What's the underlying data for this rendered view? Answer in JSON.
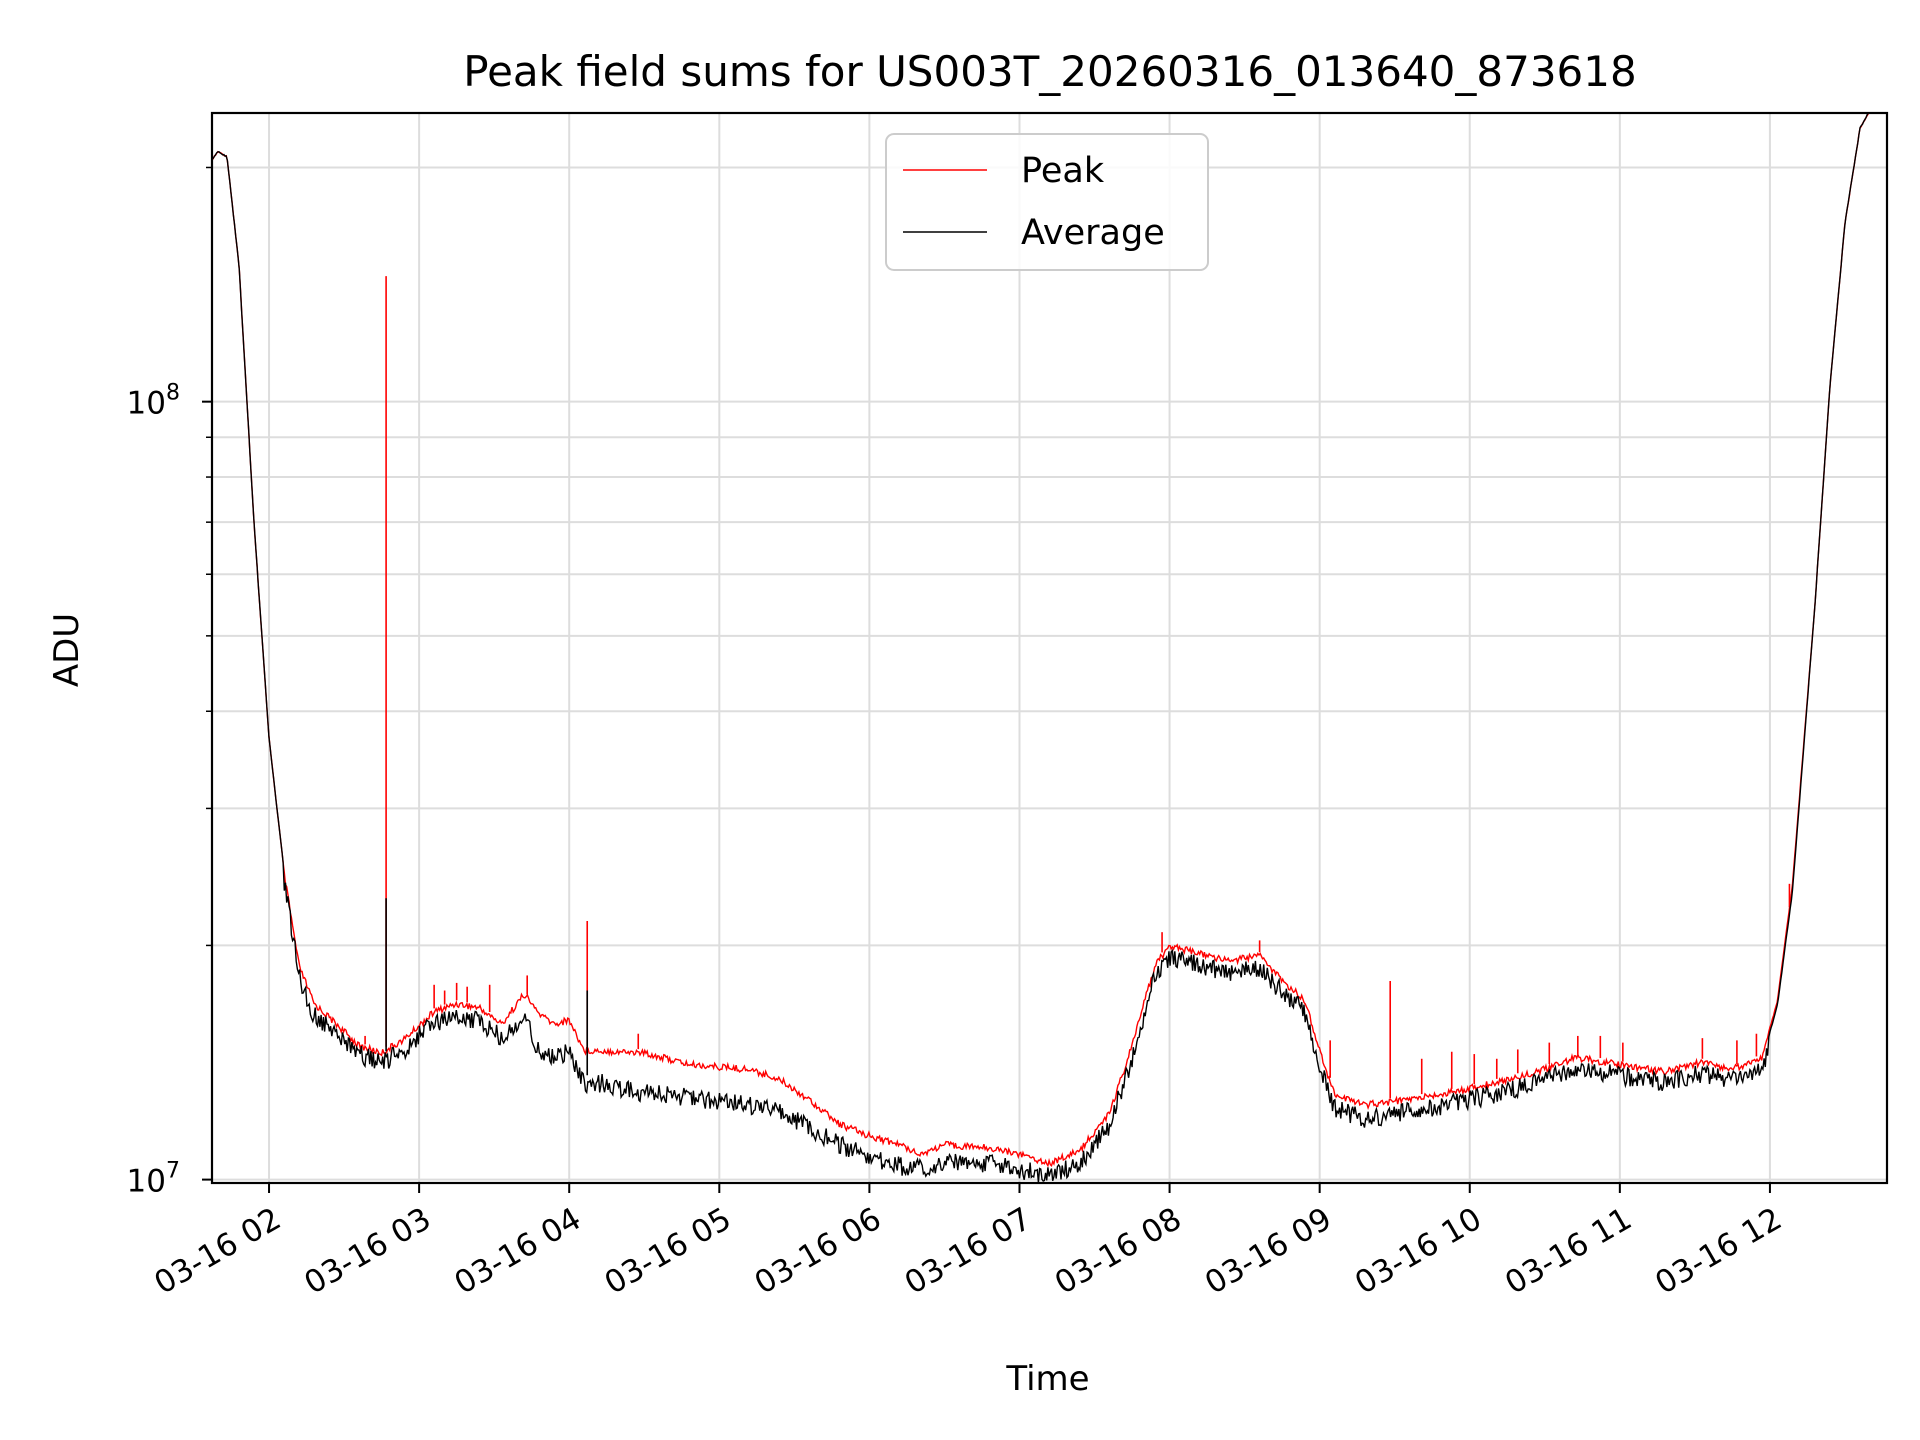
{
  "chart_data": {
    "type": "line",
    "title": "Peak field sums for US003T_20260316_013640_873618",
    "xlabel": "Time",
    "ylabel": "ADU",
    "yscale": "log",
    "ylim": [
      9900000,
      235000000
    ],
    "xlim": [
      1.62,
      12.78
    ],
    "x_tick_values": [
      2,
      3,
      4,
      5,
      6,
      7,
      8,
      9,
      10,
      11,
      12
    ],
    "x_tick_labels": [
      "03-16 02",
      "03-16 03",
      "03-16 04",
      "03-16 05",
      "03-16 06",
      "03-16 07",
      "03-16 08",
      "03-16 09",
      "03-16 10",
      "03-16 11",
      "03-16 12"
    ],
    "y_tick_labels": [
      {
        "value": 10000000,
        "base": "10",
        "exp": "7"
      },
      {
        "value": 100000000,
        "base": "10",
        "exp": "8"
      }
    ],
    "grid": true,
    "legend_position": "top-center",
    "series": [
      {
        "name": "Peak",
        "color": "#ff0000",
        "baseline": [
          [
            1.62,
            205000000
          ],
          [
            1.66,
            210000000
          ],
          [
            1.72,
            207000000
          ],
          [
            1.8,
            150000000
          ],
          [
            1.9,
            70000000
          ],
          [
            2.0,
            37000000
          ],
          [
            2.1,
            25000000
          ],
          [
            2.2,
            19000000
          ],
          [
            2.3,
            17000000
          ],
          [
            2.45,
            16000000
          ],
          [
            2.6,
            15000000
          ],
          [
            2.75,
            14700000
          ],
          [
            2.9,
            15300000
          ],
          [
            3.1,
            16600000
          ],
          [
            3.25,
            17000000
          ],
          [
            3.4,
            16800000
          ],
          [
            3.55,
            16000000
          ],
          [
            3.7,
            17500000
          ],
          [
            3.8,
            16500000
          ],
          [
            3.9,
            16000000
          ],
          [
            4.0,
            16200000
          ],
          [
            4.1,
            14800000
          ],
          [
            4.2,
            14800000
          ],
          [
            4.5,
            14700000
          ],
          [
            4.8,
            14200000
          ],
          [
            5.2,
            14000000
          ],
          [
            5.4,
            13600000
          ],
          [
            5.6,
            12800000
          ],
          [
            5.8,
            11900000
          ],
          [
            6.0,
            11500000
          ],
          [
            6.2,
            11200000
          ],
          [
            6.35,
            10900000
          ],
          [
            6.5,
            11200000
          ],
          [
            6.8,
            11100000
          ],
          [
            7.0,
            10900000
          ],
          [
            7.2,
            10600000
          ],
          [
            7.4,
            11000000
          ],
          [
            7.6,
            12300000
          ],
          [
            7.75,
            15000000
          ],
          [
            7.9,
            19000000
          ],
          [
            8.0,
            20200000
          ],
          [
            8.2,
            19700000
          ],
          [
            8.4,
            19300000
          ],
          [
            8.6,
            19600000
          ],
          [
            8.75,
            18200000
          ],
          [
            8.9,
            17200000
          ],
          [
            9.0,
            14800000
          ],
          [
            9.1,
            13000000
          ],
          [
            9.3,
            12600000
          ],
          [
            9.6,
            12800000
          ],
          [
            9.9,
            13100000
          ],
          [
            10.2,
            13500000
          ],
          [
            10.5,
            14000000
          ],
          [
            10.7,
            14500000
          ],
          [
            10.9,
            14300000
          ],
          [
            11.1,
            14100000
          ],
          [
            11.3,
            13900000
          ],
          [
            11.55,
            14300000
          ],
          [
            11.75,
            14000000
          ],
          [
            11.95,
            14500000
          ],
          [
            12.05,
            17000000
          ],
          [
            12.15,
            24000000
          ],
          [
            12.3,
            55000000
          ],
          [
            12.4,
            105000000
          ],
          [
            12.5,
            170000000
          ],
          [
            12.6,
            225000000
          ],
          [
            12.68,
            240000000
          ]
        ],
        "spikes": [
          [
            2.64,
            15300000
          ],
          [
            2.78,
            145000000
          ],
          [
            3.1,
            17800000
          ],
          [
            3.17,
            17500000
          ],
          [
            3.25,
            17900000
          ],
          [
            3.32,
            17700000
          ],
          [
            3.47,
            17800000
          ],
          [
            3.72,
            18300000
          ],
          [
            4.12,
            21500000
          ],
          [
            4.46,
            15400000
          ],
          [
            7.95,
            20800000
          ],
          [
            8.6,
            20300000
          ],
          [
            9.07,
            15100000
          ],
          [
            9.47,
            18000000
          ],
          [
            9.68,
            14300000
          ],
          [
            9.88,
            14600000
          ],
          [
            10.03,
            14500000
          ],
          [
            10.18,
            14300000
          ],
          [
            10.32,
            14700000
          ],
          [
            10.53,
            15000000
          ],
          [
            10.72,
            15300000
          ],
          [
            10.87,
            15300000
          ],
          [
            11.02,
            15000000
          ],
          [
            11.55,
            15200000
          ],
          [
            11.78,
            15100000
          ],
          [
            11.91,
            15400000
          ],
          [
            12.13,
            24000000
          ]
        ]
      },
      {
        "name": "Average",
        "color": "#000000",
        "baseline": [
          [
            1.62,
            205000000
          ],
          [
            1.66,
            210000000
          ],
          [
            1.72,
            207000000
          ],
          [
            1.8,
            150000000
          ],
          [
            1.9,
            70000000
          ],
          [
            2.0,
            37000000
          ],
          [
            2.1,
            25000000
          ],
          [
            2.2,
            18800000
          ],
          [
            2.3,
            16700000
          ],
          [
            2.45,
            15800000
          ],
          [
            2.6,
            14900000
          ],
          [
            2.75,
            14500000
          ],
          [
            2.9,
            15100000
          ],
          [
            3.1,
            16400000
          ],
          [
            3.25,
            16700000
          ],
          [
            3.4,
            16400000
          ],
          [
            3.55,
            15700000
          ],
          [
            3.7,
            16600000
          ],
          [
            3.8,
            15000000
          ],
          [
            3.9,
            14800000
          ],
          [
            4.0,
            15000000
          ],
          [
            4.1,
            13600000
          ],
          [
            4.2,
            13700000
          ],
          [
            4.5,
            13300000
          ],
          [
            4.8,
            13100000
          ],
          [
            5.2,
            12800000
          ],
          [
            5.4,
            12600000
          ],
          [
            5.6,
            12000000
          ],
          [
            5.8,
            11400000
          ],
          [
            6.0,
            11000000
          ],
          [
            6.2,
            10700000
          ],
          [
            6.35,
            10600000
          ],
          [
            6.5,
            10800000
          ],
          [
            6.8,
            10800000
          ],
          [
            7.0,
            10600000
          ],
          [
            7.2,
            10400000
          ],
          [
            7.4,
            10800000
          ],
          [
            7.6,
            12100000
          ],
          [
            7.75,
            14700000
          ],
          [
            7.9,
            18700000
          ],
          [
            8.0,
            19900000
          ],
          [
            8.2,
            19400000
          ],
          [
            8.4,
            19000000
          ],
          [
            8.6,
            19300000
          ],
          [
            8.75,
            17900000
          ],
          [
            8.9,
            16900000
          ],
          [
            9.0,
            14500000
          ],
          [
            9.1,
            12700000
          ],
          [
            9.3,
            12300000
          ],
          [
            9.6,
            12600000
          ],
          [
            9.9,
            12900000
          ],
          [
            10.2,
            13300000
          ],
          [
            10.5,
            13800000
          ],
          [
            10.7,
            14300000
          ],
          [
            10.9,
            14100000
          ],
          [
            11.1,
            13900000
          ],
          [
            11.3,
            13700000
          ],
          [
            11.55,
            14100000
          ],
          [
            11.75,
            13800000
          ],
          [
            11.95,
            14300000
          ],
          [
            12.05,
            16800000
          ],
          [
            12.15,
            23500000
          ],
          [
            12.3,
            55000000
          ],
          [
            12.4,
            105000000
          ],
          [
            12.5,
            170000000
          ],
          [
            12.6,
            225000000
          ],
          [
            12.68,
            240000000
          ]
        ],
        "spikes": [
          [
            2.78,
            23000000
          ],
          [
            4.12,
            17500000
          ]
        ]
      }
    ]
  }
}
